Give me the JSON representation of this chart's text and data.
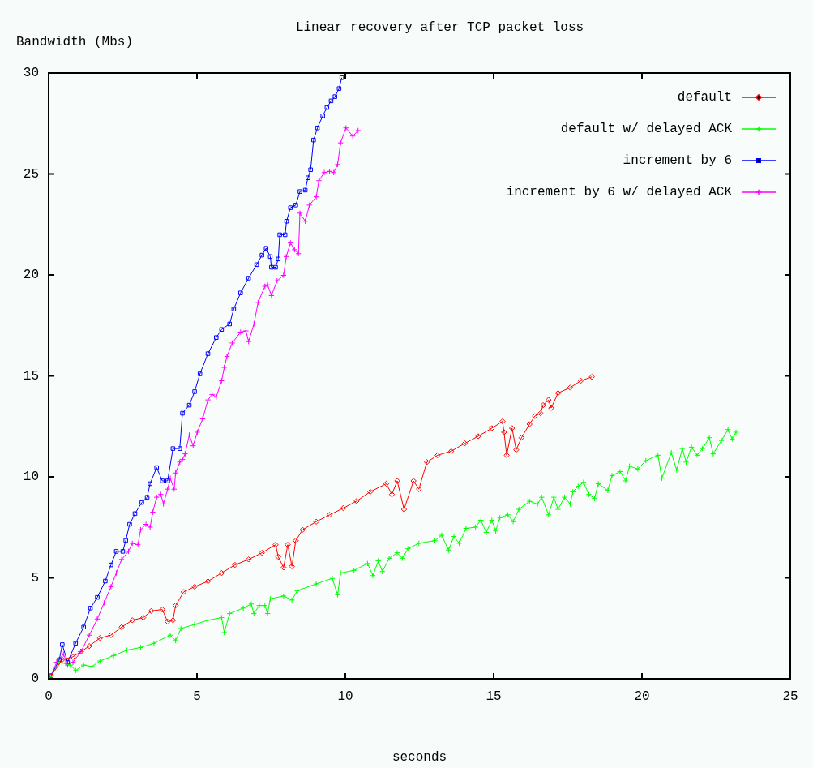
{
  "chart_data": {
    "type": "line",
    "title": "Linear recovery after TCP packet loss",
    "xlabel": "seconds",
    "ylabel": "Bandwidth (Mbs)",
    "xlim": [
      0,
      25
    ],
    "xticks": [
      0,
      5,
      10,
      15,
      20,
      25
    ],
    "ylim": [
      0,
      30
    ],
    "yticks": [
      0,
      5,
      10,
      15,
      20,
      25,
      30
    ],
    "grid": false,
    "legend": "top right",
    "line_style": "solid",
    "series": [
      {
        "name": "default",
        "color": "#ff0000",
        "marker": "diamond",
        "x": [
          0.09,
          0.46,
          0.82,
          1.09,
          1.37,
          1.73,
          2.1,
          2.46,
          2.82,
          3.19,
          3.46,
          3.83,
          4.01,
          4.19,
          4.28,
          4.55,
          4.92,
          5.37,
          5.83,
          6.28,
          6.74,
          7.19,
          7.65,
          7.74,
          7.92,
          8.06,
          8.2,
          8.33,
          8.56,
          9.02,
          9.47,
          9.93,
          10.38,
          10.84,
          11.38,
          11.57,
          11.75,
          11.98,
          12.3,
          12.48,
          12.75,
          13.11,
          13.57,
          14.03,
          14.48,
          14.94,
          15.3,
          15.35,
          15.44,
          15.62,
          15.76,
          15.94,
          16.21,
          16.39,
          16.58,
          16.67,
          16.85,
          16.94,
          17.17,
          17.58,
          17.94,
          18.31
        ],
        "values": [
          0.15,
          0.95,
          1.09,
          1.35,
          1.62,
          2.02,
          2.16,
          2.56,
          2.9,
          3.03,
          3.36,
          3.43,
          2.83,
          2.9,
          3.63,
          4.3,
          4.56,
          4.83,
          5.24,
          5.64,
          5.91,
          6.24,
          6.64,
          6.04,
          5.51,
          6.64,
          5.57,
          6.84,
          7.38,
          7.78,
          8.12,
          8.45,
          8.8,
          9.26,
          9.66,
          9.13,
          9.8,
          8.39,
          9.8,
          9.39,
          10.73,
          11.07,
          11.27,
          11.66,
          12.01,
          12.41,
          12.75,
          12.21,
          11.07,
          12.41,
          11.34,
          11.94,
          12.61,
          13.01,
          13.15,
          13.55,
          13.81,
          13.41,
          14.15,
          14.42,
          14.76,
          14.95
        ]
      },
      {
        "name": "default w/ delayed ACK",
        "color": "#00ff00",
        "marker": "cross",
        "x": [
          0.05,
          0.36,
          0.73,
          0.91,
          1.18,
          1.46,
          1.73,
          2.19,
          2.64,
          3.1,
          3.55,
          4.1,
          4.28,
          4.46,
          4.92,
          5.37,
          5.83,
          5.92,
          6.1,
          6.56,
          6.83,
          6.92,
          7.1,
          7.29,
          7.38,
          7.47,
          7.92,
          8.2,
          8.38,
          9.02,
          9.56,
          9.74,
          9.84,
          10.29,
          10.75,
          10.93,
          11.11,
          11.25,
          11.48,
          11.75,
          11.93,
          12.11,
          12.48,
          13.02,
          13.25,
          13.48,
          13.66,
          13.84,
          14.07,
          14.39,
          14.57,
          14.75,
          14.94,
          15.07,
          15.21,
          15.48,
          15.66,
          15.85,
          16.21,
          16.48,
          16.62,
          16.85,
          17.03,
          17.17,
          17.39,
          17.58,
          17.67,
          17.85,
          18.03,
          18.21,
          18.4,
          18.53,
          18.85,
          18.99,
          19.26,
          19.45,
          19.58,
          19.86,
          20.13,
          20.54,
          20.67,
          20.99,
          21.17,
          21.36,
          21.49,
          21.67,
          21.86,
          22.04,
          22.27,
          22.4,
          22.68,
          22.9,
          23.04,
          23.17
        ],
        "values": [
          0.05,
          0.82,
          0.68,
          0.41,
          0.68,
          0.61,
          0.88,
          1.15,
          1.42,
          1.55,
          1.76,
          2.16,
          1.89,
          2.49,
          2.69,
          2.9,
          3.03,
          2.29,
          3.23,
          3.5,
          3.7,
          3.23,
          3.63,
          3.63,
          3.23,
          3.96,
          4.1,
          3.9,
          4.36,
          4.7,
          4.97,
          4.16,
          5.24,
          5.37,
          5.71,
          5.11,
          5.84,
          5.31,
          5.97,
          6.24,
          5.97,
          6.44,
          6.71,
          6.84,
          7.11,
          6.37,
          7.05,
          6.71,
          7.45,
          7.51,
          7.85,
          7.25,
          7.85,
          7.32,
          7.98,
          8.12,
          7.78,
          8.39,
          8.79,
          8.65,
          8.99,
          8.12,
          8.99,
          8.39,
          8.99,
          8.65,
          9.26,
          9.53,
          9.73,
          9.13,
          8.93,
          9.66,
          9.33,
          10.06,
          10.26,
          9.8,
          10.53,
          10.39,
          10.8,
          11.07,
          9.93,
          11.2,
          10.33,
          11.4,
          10.73,
          11.47,
          11.07,
          11.4,
          11.94,
          11.14,
          11.8,
          12.34,
          11.87,
          12.21
        ]
      },
      {
        "name": "increment by 6",
        "color": "#0000ff",
        "marker": "square",
        "x": [
          0.09,
          0.36,
          0.46,
          0.64,
          0.91,
          1.18,
          1.41,
          1.64,
          1.91,
          2.1,
          2.28,
          2.5,
          2.6,
          2.73,
          2.91,
          3.14,
          3.32,
          3.42,
          3.64,
          3.83,
          4.01,
          4.19,
          4.42,
          4.51,
          4.74,
          4.92,
          5.1,
          5.37,
          5.65,
          5.83,
          6.1,
          6.24,
          6.47,
          6.74,
          7.01,
          7.19,
          7.33,
          7.47,
          7.51,
          7.65,
          7.74,
          7.79,
          7.97,
          8.02,
          8.15,
          8.33,
          8.47,
          8.65,
          8.74,
          8.83,
          8.93,
          9.06,
          9.24,
          9.38,
          9.52,
          9.65,
          9.79,
          9.88
        ],
        "values": [
          0.15,
          0.95,
          1.69,
          0.82,
          1.76,
          2.56,
          3.5,
          4.03,
          4.84,
          5.64,
          6.31,
          6.31,
          6.85,
          7.65,
          8.18,
          8.73,
          8.99,
          9.66,
          10.46,
          9.8,
          9.8,
          11.4,
          11.4,
          13.15,
          13.55,
          14.22,
          15.1,
          16.1,
          16.9,
          17.3,
          17.57,
          18.31,
          19.11,
          19.84,
          20.51,
          20.98,
          21.32,
          20.91,
          20.38,
          20.38,
          20.79,
          21.99,
          21.99,
          22.66,
          23.33,
          23.46,
          24.13,
          24.2,
          24.81,
          25.21,
          26.68,
          27.28,
          27.88,
          28.29,
          28.62,
          28.83,
          29.23,
          29.77
        ]
      },
      {
        "name": "increment by 6 w/ delayed ACK",
        "color": "#ff00ff",
        "marker": "cross",
        "x": [
          0.09,
          0.27,
          0.5,
          0.64,
          0.82,
          1.09,
          1.37,
          1.64,
          1.87,
          2.1,
          2.28,
          2.46,
          2.69,
          2.82,
          3.01,
          3.1,
          3.28,
          3.42,
          3.51,
          3.64,
          3.78,
          3.87,
          4.01,
          4.1,
          4.23,
          4.28,
          4.42,
          4.51,
          4.6,
          4.74,
          4.87,
          5.01,
          5.19,
          5.37,
          5.51,
          5.65,
          5.83,
          5.92,
          6.01,
          6.19,
          6.47,
          6.65,
          6.74,
          6.92,
          7.06,
          7.29,
          7.38,
          7.51,
          7.7,
          7.92,
          8.01,
          8.15,
          8.29,
          8.42,
          8.47,
          8.65,
          8.79,
          9.02,
          9.11,
          9.29,
          9.47,
          9.61,
          9.74,
          9.84,
          10.02,
          10.25,
          10.43
        ],
        "values": [
          0.15,
          0.82,
          1.22,
          0.68,
          0.82,
          1.35,
          2.16,
          2.96,
          3.76,
          4.56,
          5.24,
          5.91,
          6.31,
          6.71,
          6.64,
          7.38,
          7.65,
          7.51,
          8.25,
          8.99,
          9.13,
          8.66,
          9.39,
          9.93,
          9.39,
          10.19,
          10.73,
          10.86,
          11.14,
          12.07,
          11.54,
          12.21,
          12.87,
          13.81,
          14.08,
          13.95,
          14.76,
          15.42,
          15.96,
          16.63,
          17.17,
          17.23,
          16.7,
          17.57,
          18.64,
          19.44,
          19.51,
          18.98,
          19.71,
          19.98,
          20.91,
          21.59,
          21.25,
          21.05,
          23.06,
          22.66,
          23.46,
          23.87,
          24.67,
          25.07,
          25.13,
          25.07,
          25.47,
          26.54,
          27.28,
          26.88,
          27.15
        ]
      }
    ]
  }
}
